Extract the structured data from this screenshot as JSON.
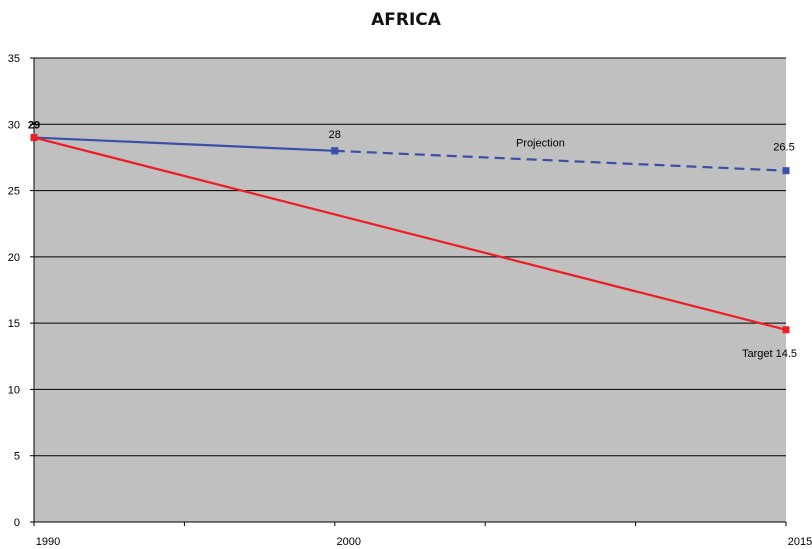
{
  "chart_data": {
    "type": "line",
    "title": "AFRICA",
    "xlabel": "",
    "ylabel": "",
    "x_ticks": [
      "1990",
      "2000",
      "2015"
    ],
    "y_ticks": [
      "0",
      "5",
      "10",
      "15",
      "20",
      "25",
      "30",
      "35"
    ],
    "ylim": [
      0,
      35
    ],
    "xlim": [
      1990,
      2015
    ],
    "grid": true,
    "plot_background": "#c0c0c0",
    "series": [
      {
        "points": [
          {
            "x": 1990,
            "y": 29,
            "label": "29"
          },
          {
            "x": 2000,
            "y": 28,
            "label": "28"
          }
        ],
        "color": "#3a4fa8",
        "style": "solid",
        "marker": "square"
      },
      {
        "name": "Projection",
        "points": [
          {
            "x": 2000,
            "y": 28
          },
          {
            "x": 2015,
            "y": 26.5,
            "label": "26.5"
          }
        ],
        "color": "#3a4fa8",
        "style": "dashed",
        "marker": "square"
      },
      {
        "name": "Target",
        "points": [
          {
            "x": 1990,
            "y": 29
          },
          {
            "x": 2015,
            "y": 14.5,
            "label": "Target 14.5"
          }
        ],
        "color": "#ee1c25",
        "style": "solid",
        "marker": "square"
      }
    ]
  }
}
